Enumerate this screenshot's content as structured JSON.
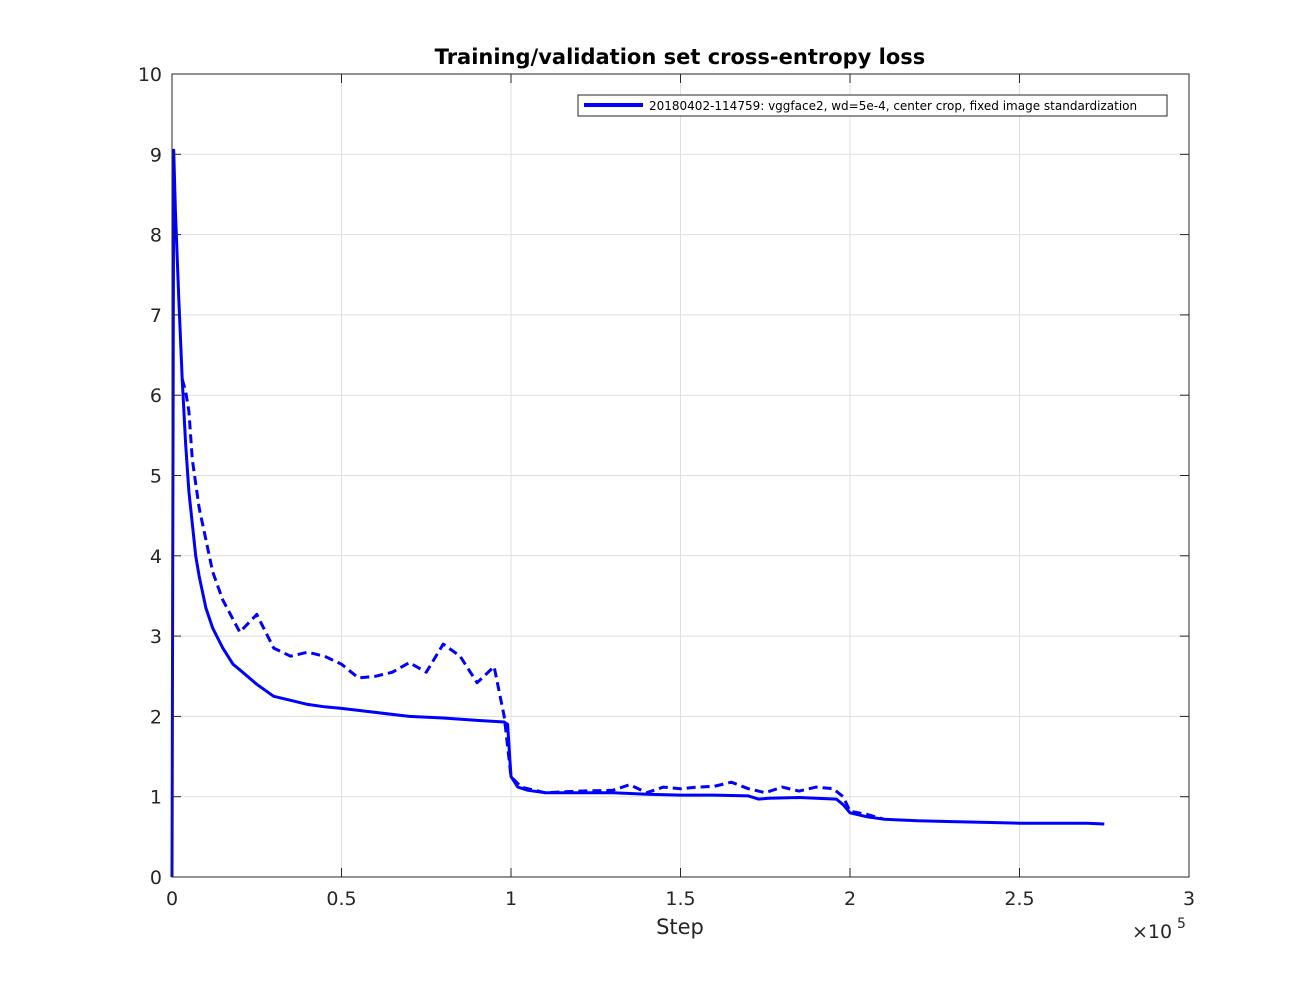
{
  "chart_data": {
    "type": "line",
    "title": "Training/validation set cross-entropy loss",
    "xlabel": "Step",
    "ylabel": "",
    "x_exponent_label": {
      "times": "×10",
      "power": "5"
    },
    "xlim": [
      0,
      300000
    ],
    "ylim": [
      0,
      10
    ],
    "x_ticks": [
      0,
      50000,
      100000,
      150000,
      200000,
      250000,
      300000
    ],
    "x_tick_labels": [
      "0",
      "0.5",
      "1",
      "1.5",
      "2",
      "2.5",
      "3"
    ],
    "y_ticks": [
      0,
      1,
      2,
      3,
      4,
      5,
      6,
      7,
      8,
      9,
      10
    ],
    "y_tick_labels": [
      "0",
      "1",
      "2",
      "3",
      "4",
      "5",
      "6",
      "7",
      "8",
      "9",
      "10"
    ],
    "grid": true,
    "legend_position": "top-right",
    "color": "#0000ff",
    "legend_entry": "20180402-114759: vggface2, wd=5e-4, center crop, fixed image standardization",
    "series": [
      {
        "style": "solid",
        "x": [
          0,
          500,
          1000,
          2000,
          3000,
          4000,
          5000,
          6000,
          7000,
          8000,
          10000,
          12000,
          15000,
          18000,
          20000,
          25000,
          30000,
          35000,
          40000,
          45000,
          50000,
          60000,
          70000,
          80000,
          90000,
          98000,
          99000,
          100000,
          102000,
          105000,
          110000,
          120000,
          130000,
          140000,
          150000,
          160000,
          170000,
          173000,
          176000,
          185000,
          190000,
          196000,
          198000,
          200000,
          205000,
          210000,
          220000,
          230000,
          240000,
          250000,
          260000,
          270000,
          275000
        ],
        "y": [
          0,
          9.05,
          8.3,
          7.2,
          6.2,
          5.4,
          4.8,
          4.4,
          4.0,
          3.75,
          3.35,
          3.1,
          2.85,
          2.65,
          2.58,
          2.4,
          2.25,
          2.2,
          2.15,
          2.12,
          2.1,
          2.05,
          2.0,
          1.98,
          1.95,
          1.93,
          1.9,
          1.25,
          1.12,
          1.08,
          1.05,
          1.05,
          1.05,
          1.03,
          1.02,
          1.02,
          1.01,
          0.97,
          0.98,
          0.99,
          0.98,
          0.97,
          0.9,
          0.8,
          0.75,
          0.72,
          0.7,
          0.69,
          0.68,
          0.67,
          0.67,
          0.67,
          0.66
        ]
      },
      {
        "style": "dashed",
        "x": [
          3000,
          4000,
          5000,
          6000,
          8000,
          10000,
          12000,
          15000,
          20000,
          25000,
          30000,
          35000,
          40000,
          45000,
          50000,
          55000,
          60000,
          65000,
          70000,
          75000,
          80000,
          85000,
          90000,
          95000,
          98000,
          100000,
          103000,
          110000,
          120000,
          130000,
          135000,
          140000,
          145000,
          150000,
          155000,
          160000,
          165000,
          170000,
          175000,
          180000,
          185000,
          190000,
          195000,
          198000,
          200000,
          205000,
          210000
        ],
        "y": [
          6.2,
          6.05,
          5.8,
          5.2,
          4.6,
          4.2,
          3.8,
          3.45,
          3.05,
          3.27,
          2.85,
          2.75,
          2.8,
          2.75,
          2.65,
          2.48,
          2.5,
          2.55,
          2.67,
          2.55,
          2.9,
          2.75,
          2.42,
          2.62,
          2.0,
          1.25,
          1.12,
          1.05,
          1.07,
          1.08,
          1.15,
          1.05,
          1.12,
          1.1,
          1.12,
          1.13,
          1.18,
          1.1,
          1.05,
          1.12,
          1.07,
          1.12,
          1.1,
          1.0,
          0.82,
          0.78,
          0.72
        ]
      }
    ]
  }
}
